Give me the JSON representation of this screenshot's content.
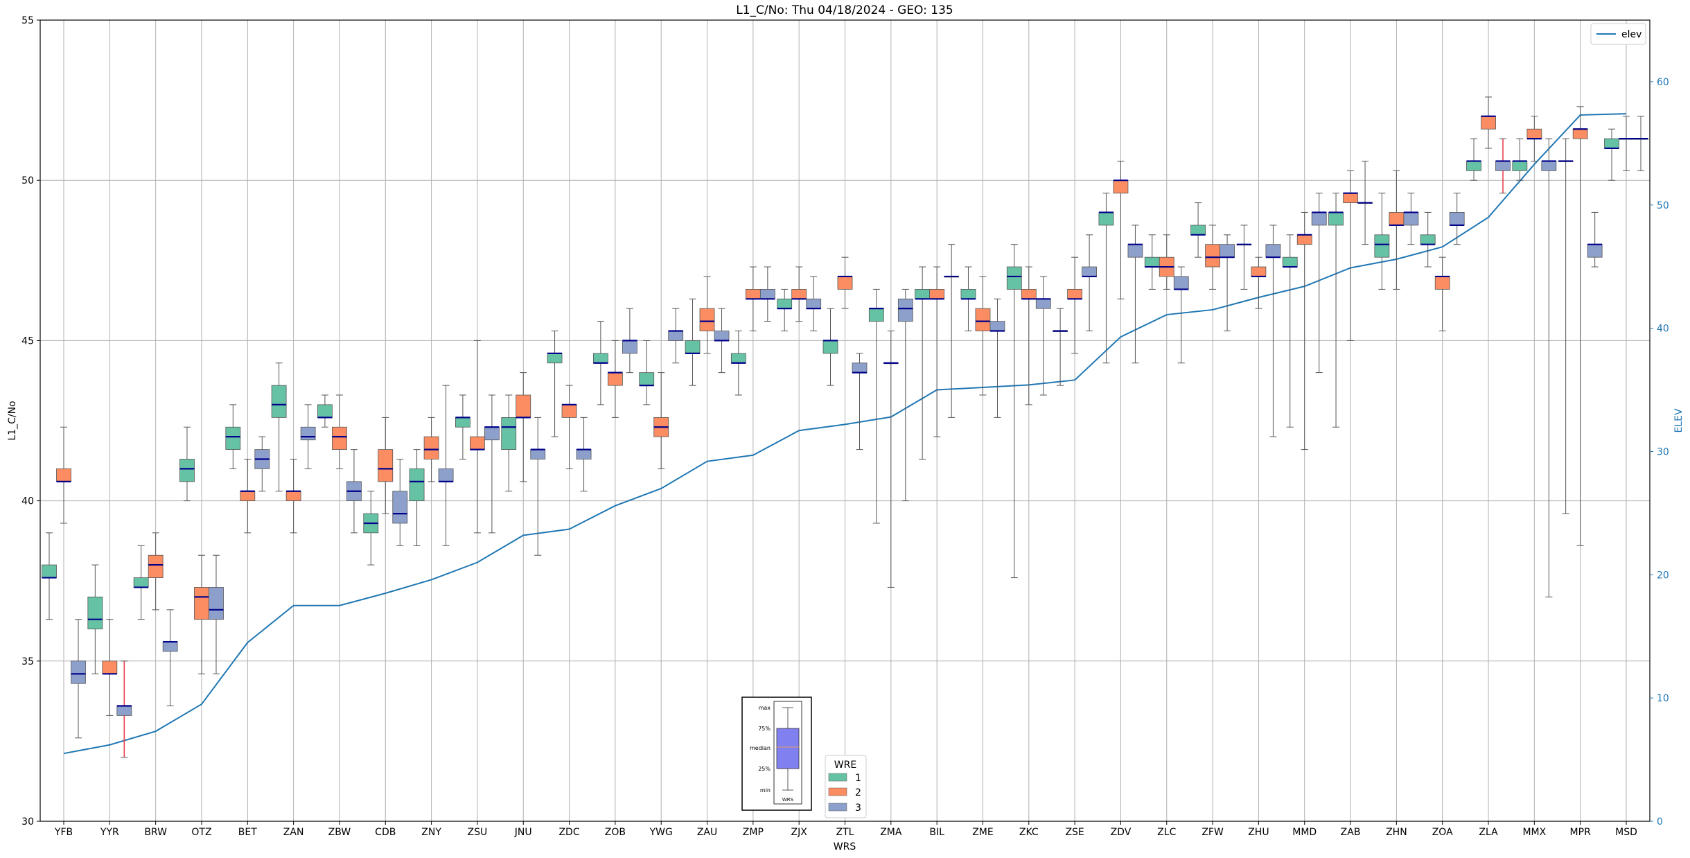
{
  "chart_data": {
    "type": "box",
    "title": "L1_C/No: Thu 04/18/2024 - GEO: 135",
    "xlabel": "WRS",
    "ylabel": "L1_C/No",
    "y2label": "ELEV",
    "ylim": [
      30,
      55
    ],
    "y2lim": [
      0,
      65
    ],
    "yticks": [
      30,
      35,
      40,
      45,
      50,
      55
    ],
    "y2ticks": [
      0,
      10,
      20,
      30,
      40,
      50,
      60
    ],
    "grid": true,
    "categories": [
      "YFB",
      "YYR",
      "BRW",
      "OTZ",
      "BET",
      "ZAN",
      "ZBW",
      "CDB",
      "ZNY",
      "ZSU",
      "JNU",
      "ZDC",
      "ZOB",
      "YWG",
      "ZAU",
      "ZMP",
      "ZJX",
      "ZTL",
      "ZMA",
      "BIL",
      "ZME",
      "ZKC",
      "ZSE",
      "ZDV",
      "ZLC",
      "ZFW",
      "ZHU",
      "MMD",
      "ZAB",
      "ZHN",
      "ZOA",
      "ZLA",
      "MMX",
      "MPR",
      "MSD"
    ],
    "colors": {
      "1": "#66c2a5",
      "2": "#fc8d62",
      "3": "#8da0cb",
      "elev": "#1f77b4",
      "median": "#00008b",
      "outlier_whisker": "#e8414f"
    },
    "elev_series": {
      "name": "elev",
      "values": [
        5.5,
        6.2,
        7.3,
        9.5,
        14.5,
        17.5,
        17.5,
        18.5,
        19.6,
        21.0,
        23.2,
        23.7,
        25.6,
        27.0,
        29.2,
        29.7,
        31.7,
        32.2,
        32.8,
        35.0,
        35.2,
        35.4,
        35.8,
        39.3,
        41.1,
        41.5,
        42.5,
        43.4,
        44.9,
        45.6,
        46.6,
        49.0,
        53.3,
        57.3,
        57.4
      ]
    },
    "boxes": [
      {
        "station": "YFB",
        "wre": 1,
        "min": 36.3,
        "q1": 37.6,
        "median": 37.6,
        "q3": 38.0,
        "max": 39.0
      },
      {
        "station": "YFB",
        "wre": 2,
        "min": 39.3,
        "q1": 40.6,
        "median": 40.6,
        "q3": 41.0,
        "max": 42.3
      },
      {
        "station": "YFB",
        "wre": 3,
        "min": 32.6,
        "q1": 34.3,
        "median": 34.6,
        "q3": 35.0,
        "max": 36.3
      },
      {
        "station": "YYR",
        "wre": 1,
        "min": 34.6,
        "q1": 36.0,
        "median": 36.3,
        "q3": 37.0,
        "max": 38.0
      },
      {
        "station": "YYR",
        "wre": 2,
        "min": 33.3,
        "q1": 34.6,
        "median": 34.6,
        "q3": 35.0,
        "max": 36.3
      },
      {
        "station": "YYR",
        "wre": 3,
        "min": 32.0,
        "q1": 33.3,
        "median": 33.6,
        "q3": 33.6,
        "max": 35.0,
        "flag": true
      },
      {
        "station": "BRW",
        "wre": 1,
        "min": 36.3,
        "q1": 37.3,
        "median": 37.3,
        "q3": 37.6,
        "max": 38.6
      },
      {
        "station": "BRW",
        "wre": 2,
        "min": 36.6,
        "q1": 37.6,
        "median": 38.0,
        "q3": 38.3,
        "max": 39.0
      },
      {
        "station": "BRW",
        "wre": 3,
        "min": 33.6,
        "q1": 35.3,
        "median": 35.6,
        "q3": 35.6,
        "max": 36.6
      },
      {
        "station": "OTZ",
        "wre": 1,
        "min": 40.0,
        "q1": 40.6,
        "median": 41.0,
        "q3": 41.3,
        "max": 42.3
      },
      {
        "station": "OTZ",
        "wre": 2,
        "min": 34.6,
        "q1": 36.3,
        "median": 37.0,
        "q3": 37.3,
        "max": 38.3
      },
      {
        "station": "OTZ",
        "wre": 3,
        "min": 34.6,
        "q1": 36.3,
        "median": 36.6,
        "q3": 37.3,
        "max": 38.3
      },
      {
        "station": "BET",
        "wre": 1,
        "min": 41.0,
        "q1": 41.6,
        "median": 42.0,
        "q3": 42.3,
        "max": 43.0
      },
      {
        "station": "BET",
        "wre": 2,
        "min": 39.0,
        "q1": 40.0,
        "median": 40.3,
        "q3": 40.3,
        "max": 41.3
      },
      {
        "station": "BET",
        "wre": 3,
        "min": 40.3,
        "q1": 41.0,
        "median": 41.3,
        "q3": 41.6,
        "max": 42.0
      },
      {
        "station": "ZAN",
        "wre": 1,
        "min": 40.3,
        "q1": 42.6,
        "median": 43.0,
        "q3": 43.6,
        "max": 44.3
      },
      {
        "station": "ZAN",
        "wre": 2,
        "min": 39.0,
        "q1": 40.0,
        "median": 40.3,
        "q3": 40.3,
        "max": 41.3
      },
      {
        "station": "ZAN",
        "wre": 3,
        "min": 41.0,
        "q1": 41.9,
        "median": 42.0,
        "q3": 42.3,
        "max": 43.0
      },
      {
        "station": "ZBW",
        "wre": 1,
        "min": 42.3,
        "q1": 42.6,
        "median": 42.6,
        "q3": 43.0,
        "max": 43.3
      },
      {
        "station": "ZBW",
        "wre": 2,
        "min": 41.0,
        "q1": 41.6,
        "median": 42.0,
        "q3": 42.3,
        "max": 43.3
      },
      {
        "station": "ZBW",
        "wre": 3,
        "min": 39.0,
        "q1": 40.0,
        "median": 40.3,
        "q3": 40.6,
        "max": 41.6
      },
      {
        "station": "CDB",
        "wre": 1,
        "min": 38.0,
        "q1": 39.0,
        "median": 39.3,
        "q3": 39.6,
        "max": 40.3
      },
      {
        "station": "CDB",
        "wre": 2,
        "min": 39.6,
        "q1": 40.6,
        "median": 41.0,
        "q3": 41.6,
        "max": 42.6
      },
      {
        "station": "CDB",
        "wre": 3,
        "min": 38.6,
        "q1": 39.3,
        "median": 39.6,
        "q3": 40.3,
        "max": 41.3
      },
      {
        "station": "ZNY",
        "wre": 1,
        "min": 38.6,
        "q1": 40.0,
        "median": 40.6,
        "q3": 41.0,
        "max": 41.6
      },
      {
        "station": "ZNY",
        "wre": 2,
        "min": 40.6,
        "q1": 41.3,
        "median": 41.6,
        "q3": 42.0,
        "max": 42.6
      },
      {
        "station": "ZNY",
        "wre": 3,
        "min": 38.6,
        "q1": 40.6,
        "median": 40.6,
        "q3": 41.0,
        "max": 43.6
      },
      {
        "station": "ZSU",
        "wre": 1,
        "min": 41.3,
        "q1": 42.3,
        "median": 42.6,
        "q3": 42.6,
        "max": 43.3
      },
      {
        "station": "ZSU",
        "wre": 2,
        "min": 39.0,
        "q1": 41.6,
        "median": 41.6,
        "q3": 42.0,
        "max": 45.0
      },
      {
        "station": "ZSU",
        "wre": 3,
        "min": 39.0,
        "q1": 41.9,
        "median": 42.3,
        "q3": 42.3,
        "max": 43.3
      },
      {
        "station": "JNU",
        "wre": 1,
        "min": 40.3,
        "q1": 41.6,
        "median": 42.3,
        "q3": 42.6,
        "max": 43.3
      },
      {
        "station": "JNU",
        "wre": 2,
        "min": 40.6,
        "q1": 42.6,
        "median": 42.6,
        "q3": 43.3,
        "max": 44.0
      },
      {
        "station": "JNU",
        "wre": 3,
        "min": 38.3,
        "q1": 41.3,
        "median": 41.6,
        "q3": 41.6,
        "max": 42.6
      },
      {
        "station": "ZDC",
        "wre": 1,
        "min": 42.0,
        "q1": 44.3,
        "median": 44.6,
        "q3": 44.6,
        "max": 45.3
      },
      {
        "station": "ZDC",
        "wre": 2,
        "min": 41.0,
        "q1": 42.6,
        "median": 43.0,
        "q3": 43.0,
        "max": 43.6
      },
      {
        "station": "ZDC",
        "wre": 3,
        "min": 40.3,
        "q1": 41.3,
        "median": 41.6,
        "q3": 41.6,
        "max": 42.6
      },
      {
        "station": "ZOB",
        "wre": 1,
        "min": 43.0,
        "q1": 44.3,
        "median": 44.3,
        "q3": 44.6,
        "max": 45.6
      },
      {
        "station": "ZOB",
        "wre": 2,
        "min": 42.6,
        "q1": 43.6,
        "median": 44.0,
        "q3": 44.0,
        "max": 45.0
      },
      {
        "station": "ZOB",
        "wre": 3,
        "min": 44.0,
        "q1": 44.6,
        "median": 45.0,
        "q3": 45.0,
        "max": 46.0
      },
      {
        "station": "YWG",
        "wre": 1,
        "min": 43.0,
        "q1": 43.6,
        "median": 43.6,
        "q3": 44.0,
        "max": 45.0
      },
      {
        "station": "YWG",
        "wre": 2,
        "min": 41.0,
        "q1": 42.0,
        "median": 42.3,
        "q3": 42.6,
        "max": 44.0
      },
      {
        "station": "YWG",
        "wre": 3,
        "min": 44.3,
        "q1": 45.0,
        "median": 45.3,
        "q3": 45.3,
        "max": 46.0
      },
      {
        "station": "ZAU",
        "wre": 1,
        "min": 43.6,
        "q1": 44.6,
        "median": 44.6,
        "q3": 45.0,
        "max": 46.3
      },
      {
        "station": "ZAU",
        "wre": 2,
        "min": 44.6,
        "q1": 45.3,
        "median": 45.6,
        "q3": 46.0,
        "max": 47.0
      },
      {
        "station": "ZAU",
        "wre": 3,
        "min": 44.0,
        "q1": 45.0,
        "median": 45.0,
        "q3": 45.3,
        "max": 46.0
      },
      {
        "station": "ZMP",
        "wre": 1,
        "min": 43.3,
        "q1": 44.3,
        "median": 44.3,
        "q3": 44.6,
        "max": 45.3
      },
      {
        "station": "ZMP",
        "wre": 2,
        "min": 45.3,
        "q1": 46.3,
        "median": 46.3,
        "q3": 46.6,
        "max": 47.3
      },
      {
        "station": "ZMP",
        "wre": 3,
        "min": 45.6,
        "q1": 46.3,
        "median": 46.3,
        "q3": 46.6,
        "max": 47.3
      },
      {
        "station": "ZJX",
        "wre": 1,
        "min": 45.3,
        "q1": 46.0,
        "median": 46.0,
        "q3": 46.3,
        "max": 46.6
      },
      {
        "station": "ZJX",
        "wre": 2,
        "min": 45.6,
        "q1": 46.3,
        "median": 46.3,
        "q3": 46.6,
        "max": 47.3
      },
      {
        "station": "ZJX",
        "wre": 3,
        "min": 45.3,
        "q1": 46.0,
        "median": 46.0,
        "q3": 46.3,
        "max": 47.0
      },
      {
        "station": "ZTL",
        "wre": 1,
        "min": 43.6,
        "q1": 44.6,
        "median": 45.0,
        "q3": 45.0,
        "max": 46.0
      },
      {
        "station": "ZTL",
        "wre": 2,
        "min": 46.0,
        "q1": 46.6,
        "median": 47.0,
        "q3": 47.0,
        "max": 47.6
      },
      {
        "station": "ZTL",
        "wre": 3,
        "min": 41.6,
        "q1": 44.0,
        "median": 44.0,
        "q3": 44.3,
        "max": 44.6
      },
      {
        "station": "ZMA",
        "wre": 1,
        "min": 39.3,
        "q1": 45.6,
        "median": 46.0,
        "q3": 46.0,
        "max": 46.6
      },
      {
        "station": "ZMA",
        "wre": 2,
        "min": 37.3,
        "q1": 44.3,
        "median": 44.3,
        "q3": 44.3,
        "max": 45.3
      },
      {
        "station": "ZMA",
        "wre": 3,
        "min": 40.0,
        "q1": 45.6,
        "median": 46.0,
        "q3": 46.3,
        "max": 46.6
      },
      {
        "station": "BIL",
        "wre": 1,
        "min": 41.3,
        "q1": 46.3,
        "median": 46.3,
        "q3": 46.6,
        "max": 47.3
      },
      {
        "station": "BIL",
        "wre": 2,
        "min": 42.0,
        "q1": 46.3,
        "median": 46.3,
        "q3": 46.6,
        "max": 47.3
      },
      {
        "station": "BIL",
        "wre": 3,
        "min": 42.6,
        "q1": 47.0,
        "median": 47.0,
        "q3": 47.0,
        "max": 48.0
      },
      {
        "station": "ZME",
        "wre": 1,
        "min": 45.3,
        "q1": 46.3,
        "median": 46.3,
        "q3": 46.6,
        "max": 47.3
      },
      {
        "station": "ZME",
        "wre": 2,
        "min": 43.3,
        "q1": 45.3,
        "median": 45.6,
        "q3": 46.0,
        "max": 47.0
      },
      {
        "station": "ZME",
        "wre": 3,
        "min": 42.6,
        "q1": 45.3,
        "median": 45.3,
        "q3": 45.6,
        "max": 46.3
      },
      {
        "station": "ZKC",
        "wre": 1,
        "min": 37.6,
        "q1": 46.6,
        "median": 47.0,
        "q3": 47.3,
        "max": 48.0
      },
      {
        "station": "ZKC",
        "wre": 2,
        "min": 43.0,
        "q1": 46.3,
        "median": 46.3,
        "q3": 46.6,
        "max": 47.3
      },
      {
        "station": "ZKC",
        "wre": 3,
        "min": 43.3,
        "q1": 46.0,
        "median": 46.3,
        "q3": 46.3,
        "max": 47.0
      },
      {
        "station": "ZSE",
        "wre": 1,
        "min": 43.6,
        "q1": 45.3,
        "median": 45.3,
        "q3": 45.3,
        "max": 46.0
      },
      {
        "station": "ZSE",
        "wre": 2,
        "min": 44.6,
        "q1": 46.3,
        "median": 46.3,
        "q3": 46.6,
        "max": 47.6
      },
      {
        "station": "ZSE",
        "wre": 3,
        "min": 45.3,
        "q1": 47.0,
        "median": 47.0,
        "q3": 47.3,
        "max": 48.3
      },
      {
        "station": "ZDV",
        "wre": 1,
        "min": 44.3,
        "q1": 48.6,
        "median": 49.0,
        "q3": 49.0,
        "max": 49.6
      },
      {
        "station": "ZDV",
        "wre": 2,
        "min": 46.3,
        "q1": 49.6,
        "median": 50.0,
        "q3": 50.0,
        "max": 50.6
      },
      {
        "station": "ZDV",
        "wre": 3,
        "min": 44.3,
        "q1": 47.6,
        "median": 48.0,
        "q3": 48.0,
        "max": 48.6
      },
      {
        "station": "ZLC",
        "wre": 1,
        "min": 46.6,
        "q1": 47.3,
        "median": 47.3,
        "q3": 47.6,
        "max": 48.3
      },
      {
        "station": "ZLC",
        "wre": 2,
        "min": 46.6,
        "q1": 47.0,
        "median": 47.3,
        "q3": 47.6,
        "max": 48.3
      },
      {
        "station": "ZLC",
        "wre": 3,
        "min": 44.3,
        "q1": 46.6,
        "median": 46.6,
        "q3": 47.0,
        "max": 47.3
      },
      {
        "station": "ZFW",
        "wre": 1,
        "min": 47.6,
        "q1": 48.3,
        "median": 48.3,
        "q3": 48.6,
        "max": 49.3
      },
      {
        "station": "ZFW",
        "wre": 2,
        "min": 46.6,
        "q1": 47.3,
        "median": 47.6,
        "q3": 48.0,
        "max": 48.6
      },
      {
        "station": "ZFW",
        "wre": 3,
        "min": 45.3,
        "q1": 47.6,
        "median": 47.6,
        "q3": 48.0,
        "max": 48.3
      },
      {
        "station": "ZHU",
        "wre": 1,
        "min": 46.6,
        "q1": 48.0,
        "median": 48.0,
        "q3": 48.0,
        "max": 48.6
      },
      {
        "station": "ZHU",
        "wre": 2,
        "min": 46.0,
        "q1": 47.0,
        "median": 47.0,
        "q3": 47.3,
        "max": 47.6
      },
      {
        "station": "ZHU",
        "wre": 3,
        "min": 42.0,
        "q1": 47.6,
        "median": 47.6,
        "q3": 48.0,
        "max": 48.6
      },
      {
        "station": "MMD",
        "wre": 1,
        "min": 42.3,
        "q1": 47.3,
        "median": 47.3,
        "q3": 47.6,
        "max": 48.3
      },
      {
        "station": "MMD",
        "wre": 2,
        "min": 41.6,
        "q1": 48.0,
        "median": 48.3,
        "q3": 48.3,
        "max": 49.0
      },
      {
        "station": "MMD",
        "wre": 3,
        "min": 44.0,
        "q1": 48.6,
        "median": 49.0,
        "q3": 49.0,
        "max": 49.6
      },
      {
        "station": "ZAB",
        "wre": 1,
        "min": 42.3,
        "q1": 48.6,
        "median": 49.0,
        "q3": 49.0,
        "max": 49.6
      },
      {
        "station": "ZAB",
        "wre": 2,
        "min": 45.0,
        "q1": 49.3,
        "median": 49.6,
        "q3": 49.6,
        "max": 50.3
      },
      {
        "station": "ZAB",
        "wre": 3,
        "min": 48.0,
        "q1": 49.3,
        "median": 49.3,
        "q3": 49.3,
        "max": 50.6
      },
      {
        "station": "ZHN",
        "wre": 1,
        "min": 46.6,
        "q1": 47.6,
        "median": 48.0,
        "q3": 48.3,
        "max": 49.6
      },
      {
        "station": "ZHN",
        "wre": 2,
        "min": 46.6,
        "q1": 48.6,
        "median": 48.6,
        "q3": 49.0,
        "max": 50.3
      },
      {
        "station": "ZHN",
        "wre": 3,
        "min": 48.0,
        "q1": 48.6,
        "median": 49.0,
        "q3": 49.0,
        "max": 49.6
      },
      {
        "station": "ZOA",
        "wre": 1,
        "min": 47.3,
        "q1": 48.0,
        "median": 48.0,
        "q3": 48.3,
        "max": 49.0
      },
      {
        "station": "ZOA",
        "wre": 2,
        "min": 45.3,
        "q1": 46.6,
        "median": 47.0,
        "q3": 47.0,
        "max": 47.6
      },
      {
        "station": "ZOA",
        "wre": 3,
        "min": 48.0,
        "q1": 48.6,
        "median": 48.6,
        "q3": 49.0,
        "max": 49.6
      },
      {
        "station": "ZLA",
        "wre": 1,
        "min": 50.0,
        "q1": 50.3,
        "median": 50.6,
        "q3": 50.6,
        "max": 51.3
      },
      {
        "station": "ZLA",
        "wre": 2,
        "min": 51.0,
        "q1": 51.6,
        "median": 52.0,
        "q3": 52.0,
        "max": 52.6
      },
      {
        "station": "ZLA",
        "wre": 3,
        "min": 49.6,
        "q1": 50.3,
        "median": 50.6,
        "q3": 50.6,
        "max": 51.3,
        "flag": true
      },
      {
        "station": "MMX",
        "wre": 1,
        "min": 50.0,
        "q1": 50.3,
        "median": 50.6,
        "q3": 50.6,
        "max": 51.3
      },
      {
        "station": "MMX",
        "wre": 2,
        "min": 50.6,
        "q1": 51.3,
        "median": 51.3,
        "q3": 51.6,
        "max": 52.0
      },
      {
        "station": "MMX",
        "wre": 3,
        "min": 37.0,
        "q1": 50.3,
        "median": 50.6,
        "q3": 50.6,
        "max": 51.3
      },
      {
        "station": "MPR",
        "wre": 1,
        "min": 39.6,
        "q1": 50.6,
        "median": 50.6,
        "q3": 50.6,
        "max": 51.3
      },
      {
        "station": "MPR",
        "wre": 2,
        "min": 38.6,
        "q1": 51.3,
        "median": 51.6,
        "q3": 51.6,
        "max": 52.3
      },
      {
        "station": "MPR",
        "wre": 3,
        "min": 47.3,
        "q1": 47.6,
        "median": 48.0,
        "q3": 48.0,
        "max": 49.0
      },
      {
        "station": "MSD",
        "wre": 1,
        "min": 50.0,
        "q1": 51.0,
        "median": 51.0,
        "q3": 51.3,
        "max": 51.6
      },
      {
        "station": "MSD",
        "wre": 2,
        "min": 50.3,
        "q1": 51.3,
        "median": 51.3,
        "q3": 51.3,
        "max": 52.0
      },
      {
        "station": "MSD",
        "wre": 3,
        "min": 50.3,
        "q1": 51.3,
        "median": 51.3,
        "q3": 51.3,
        "max": 52.0
      }
    ],
    "legend_elev": {
      "label": "elev",
      "position": "top-right"
    },
    "legend_wre": {
      "title": "WRE",
      "entries": [
        "1",
        "2",
        "3"
      ],
      "position": "bottom-center"
    },
    "box_key": {
      "labels": [
        "max",
        "75%",
        "median",
        "25%",
        "min"
      ],
      "caption": "WRS"
    }
  }
}
